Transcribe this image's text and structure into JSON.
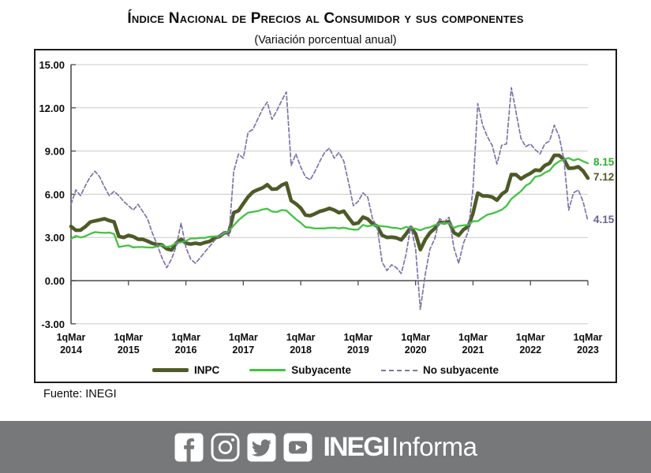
{
  "header": {
    "title": "Índice Nacional de Precios al Consumidor y sus componentes",
    "subtitle": "(Variación porcentual anual)"
  },
  "chart_data": {
    "type": "line",
    "title": "Índice Nacional de Precios al Consumidor y sus componentes",
    "subtitle": "(Variación porcentual anual)",
    "x_start": "1q Mar 2014",
    "x_end": "1q Mar 2023",
    "x_frequency": "monthly",
    "x_tick_prefix": "1qMar",
    "x_tick_years": [
      "2014",
      "2015",
      "2016",
      "2017",
      "2018",
      "2019",
      "2020",
      "2021",
      "2022",
      "2023"
    ],
    "ylim": [
      -3,
      15
    ],
    "y_ticks": [
      15,
      12,
      9,
      6,
      3,
      0,
      -3
    ],
    "y_tick_labels": [
      "15.00",
      "12.00",
      "9.00",
      "6.00",
      "3.00",
      "0.00",
      "-3.00"
    ],
    "grid": "horizontal-light",
    "legend_position": "bottom",
    "series": [
      {
        "name": "INPC",
        "color": "#4e5a27",
        "style": "solid",
        "width": 4.6,
        "end_label": "7.12",
        "end_label_color": "#4e5a27",
        "values": [
          3.76,
          3.5,
          3.51,
          3.75,
          4.07,
          4.15,
          4.22,
          4.3,
          4.17,
          4.08,
          3.07,
          3.0,
          3.14,
          3.06,
          2.88,
          2.87,
          2.74,
          2.59,
          2.52,
          2.48,
          2.21,
          2.13,
          2.61,
          2.87,
          2.6,
          2.54,
          2.6,
          2.54,
          2.65,
          2.73,
          2.97,
          3.06,
          3.31,
          3.36,
          4.72,
          4.86,
          5.35,
          5.82,
          6.16,
          6.31,
          6.44,
          6.66,
          6.35,
          6.37,
          6.63,
          6.77,
          5.55,
          5.34,
          5.04,
          4.55,
          4.51,
          4.65,
          4.81,
          4.9,
          5.02,
          4.9,
          4.72,
          4.83,
          4.37,
          3.94,
          4.0,
          4.41,
          4.28,
          3.95,
          3.78,
          3.16,
          3.0,
          3.02,
          2.97,
          2.83,
          3.24,
          3.7,
          3.25,
          2.15,
          2.84,
          3.33,
          3.62,
          4.05,
          4.01,
          4.09,
          3.33,
          3.15,
          3.54,
          3.76,
          4.67,
          6.08,
          5.89,
          5.88,
          5.81,
          5.59,
          6.0,
          6.24,
          7.37,
          7.36,
          7.07,
          7.28,
          7.45,
          7.68,
          7.65,
          7.99,
          8.15,
          8.7,
          8.7,
          8.41,
          7.8,
          7.82,
          7.91,
          7.62,
          7.12
        ]
      },
      {
        "name": "Subyacente",
        "color": "#41c341",
        "style": "solid",
        "width": 2.3,
        "end_label": "8.15",
        "end_label_color": "#2fae2f",
        "values": [
          2.89,
          3.11,
          3.0,
          3.09,
          3.25,
          3.37,
          3.34,
          3.32,
          3.34,
          3.24,
          2.34,
          2.4,
          2.45,
          2.31,
          2.33,
          2.33,
          2.31,
          2.3,
          2.38,
          2.47,
          2.34,
          2.41,
          2.64,
          2.66,
          2.76,
          2.93,
          2.93,
          2.97,
          2.97,
          3.05,
          3.07,
          3.1,
          3.29,
          3.44,
          3.84,
          4.2,
          4.48,
          4.72,
          4.78,
          4.83,
          4.94,
          5.0,
          4.8,
          4.77,
          4.9,
          4.87,
          4.56,
          4.27,
          4.02,
          3.71,
          3.69,
          3.62,
          3.63,
          3.63,
          3.67,
          3.68,
          3.63,
          3.68,
          3.6,
          3.54,
          3.55,
          3.87,
          3.77,
          3.85,
          3.82,
          3.78,
          3.75,
          3.68,
          3.65,
          3.59,
          3.73,
          3.66,
          3.6,
          3.5,
          3.64,
          3.71,
          3.85,
          3.97,
          3.99,
          3.98,
          3.66,
          3.8,
          3.84,
          3.87,
          4.12,
          4.13,
          4.37,
          4.58,
          4.66,
          4.78,
          4.92,
          5.19,
          5.67,
          5.94,
          6.21,
          6.59,
          6.78,
          7.22,
          7.28,
          7.49,
          7.65,
          8.05,
          8.28,
          8.42,
          8.51,
          8.35,
          8.45,
          8.29,
          8.15
        ]
      },
      {
        "name": "No subyacente",
        "color": "#7f74a8",
        "style": "dashed",
        "width": 1.7,
        "end_label": "4.15",
        "end_label_color": "#6c6194",
        "values": [
          5.3,
          6.3,
          5.9,
          6.6,
          7.2,
          7.6,
          7.2,
          6.5,
          5.9,
          6.2,
          5.9,
          5.5,
          5.2,
          4.9,
          5.3,
          4.8,
          4.3,
          3.3,
          2.5,
          1.6,
          0.9,
          1.5,
          2.4,
          4.0,
          2.3,
          1.5,
          1.2,
          1.6,
          2.0,
          2.4,
          2.8,
          3.1,
          3.4,
          3.1,
          7.6,
          8.8,
          8.5,
          10.3,
          10.5,
          11.2,
          11.9,
          12.4,
          11.2,
          11.8,
          12.5,
          13.1,
          8.0,
          8.8,
          7.9,
          7.2,
          7.0,
          7.6,
          8.3,
          8.9,
          9.2,
          8.5,
          8.9,
          8.3,
          6.8,
          5.2,
          5.5,
          6.1,
          5.8,
          4.3,
          3.7,
          1.3,
          0.7,
          1.1,
          0.9,
          0.5,
          1.8,
          3.8,
          2.2,
          -2.0,
          0.4,
          2.2,
          2.9,
          4.3,
          4.1,
          4.4,
          2.3,
          1.2,
          2.6,
          3.4,
          6.4,
          12.3,
          10.8,
          10.0,
          9.4,
          8.1,
          9.4,
          9.5,
          13.4,
          11.7,
          9.9,
          9.3,
          9.5,
          9.1,
          8.8,
          9.5,
          9.7,
          10.8,
          10.0,
          8.4,
          4.9,
          6.1,
          6.3,
          5.5,
          4.15
        ]
      }
    ]
  },
  "source": {
    "text": "Fuente: INEGI"
  },
  "footer_bar": {
    "background": "#77787a",
    "icons": [
      "facebook-icon",
      "instagram-icon",
      "twitter-icon",
      "youtube-icon"
    ],
    "brand_bold": "INEGI",
    "brand_light": "Informa"
  }
}
